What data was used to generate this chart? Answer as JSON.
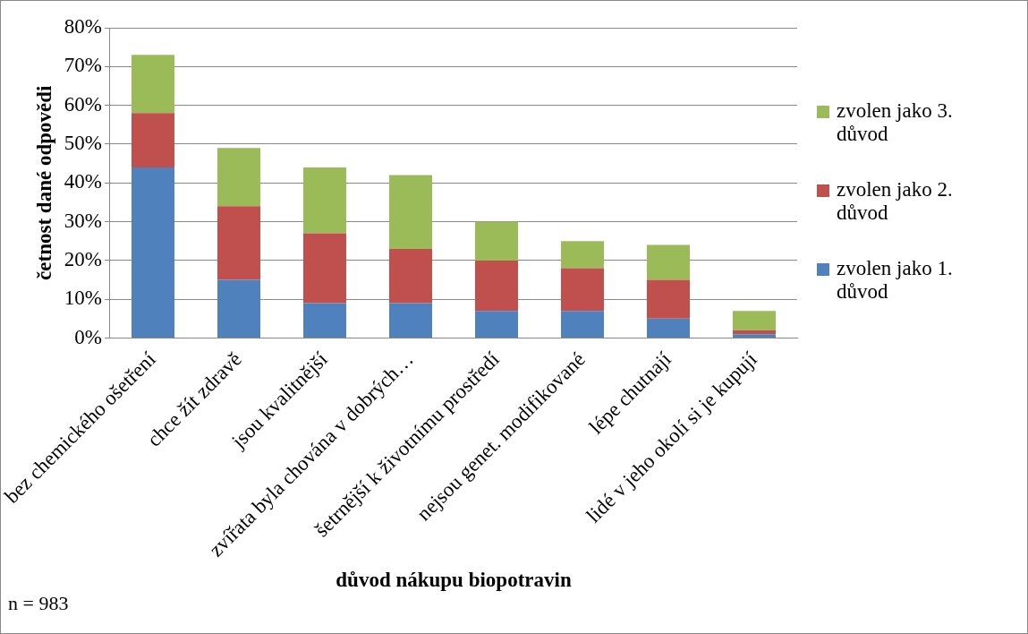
{
  "chart_data": {
    "type": "bar",
    "stacked": true,
    "xlabel": "důvod nákupu biopotravin",
    "ylabel": "četnost dané odpovědi",
    "categories": [
      "bez chemického ošetření",
      "chce žít zdravě",
      "jsou kvalitnější",
      "zvířata byla chována v dobrých…",
      "šetrnější k životnímu prostředí",
      "nejsou genet. modifikované",
      "lépe chutnají",
      "lidé v jeho okolí si je kupují"
    ],
    "series": [
      {
        "name": "zvolen jako 1. důvod",
        "color": "#4f81bd",
        "values": [
          44,
          15,
          9,
          9,
          7,
          7,
          5,
          1
        ]
      },
      {
        "name": "zvolen jako 2. důvod",
        "color": "#c0504d",
        "values": [
          14,
          19,
          18,
          14,
          13,
          11,
          10,
          1
        ]
      },
      {
        "name": "zvolen jako 3. důvod",
        "color": "#9bbb59",
        "values": [
          15,
          15,
          17,
          19,
          10,
          7,
          9,
          5
        ]
      }
    ],
    "ylim": [
      0,
      80
    ],
    "yticks": [
      {
        "value": 0,
        "label": "0%"
      },
      {
        "value": 10,
        "label": "10%"
      },
      {
        "value": 20,
        "label": "20%"
      },
      {
        "value": 30,
        "label": "30%"
      },
      {
        "value": 40,
        "label": "40%"
      },
      {
        "value": 50,
        "label": "50%"
      },
      {
        "value": 60,
        "label": "60%"
      },
      {
        "value": 70,
        "label": "70%"
      },
      {
        "value": 80,
        "label": "80%"
      }
    ],
    "grid": "y",
    "legend": "right",
    "annotations": [
      "n = 983"
    ]
  }
}
